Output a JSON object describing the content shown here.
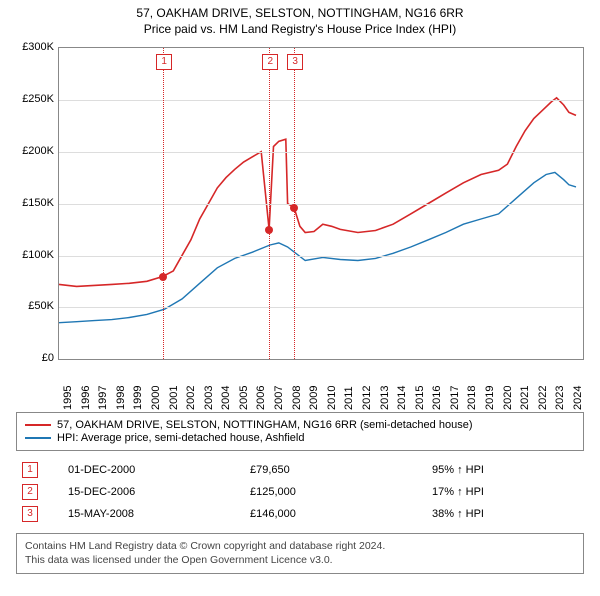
{
  "title_line1": "57, OAKHAM DRIVE, SELSTON, NOTTINGHAM, NG16 6RR",
  "title_line2": "Price paid vs. HM Land Registry's House Price Index (HPI)",
  "chart": {
    "type": "line",
    "x_min": 1995,
    "x_max": 2024.8,
    "x_ticks": [
      1995,
      1996,
      1997,
      1998,
      1999,
      2000,
      2001,
      2002,
      2003,
      2004,
      2005,
      2006,
      2007,
      2008,
      2009,
      2010,
      2011,
      2012,
      2013,
      2014,
      2015,
      2016,
      2017,
      2018,
      2019,
      2020,
      2021,
      2022,
      2023,
      2024
    ],
    "y_min": 0,
    "y_max": 300,
    "y_ticks": [
      0,
      50,
      100,
      150,
      200,
      250,
      300
    ],
    "y_prefix": "£",
    "y_suffix": "K",
    "grid_color": "#dddddd",
    "series1": {
      "label": "57, OAKHAM DRIVE, SELSTON, NOTTINGHAM, NG16 6RR (semi-detached house)",
      "color": "#d62728",
      "width": 1.6,
      "points": [
        [
          1995.0,
          72
        ],
        [
          1996.0,
          70
        ],
        [
          1997.0,
          71
        ],
        [
          1998.0,
          72
        ],
        [
          1999.0,
          73
        ],
        [
          2000.0,
          75
        ],
        [
          2000.9,
          79.6
        ],
        [
          2001.5,
          85
        ],
        [
          2002.0,
          100
        ],
        [
          2002.5,
          115
        ],
        [
          2003.0,
          135
        ],
        [
          2003.5,
          150
        ],
        [
          2004.0,
          165
        ],
        [
          2004.5,
          175
        ],
        [
          2005.0,
          183
        ],
        [
          2005.5,
          190
        ],
        [
          2006.0,
          195
        ],
        [
          2006.5,
          200
        ],
        [
          2006.95,
          125
        ],
        [
          2007.2,
          205
        ],
        [
          2007.5,
          210
        ],
        [
          2007.9,
          212
        ],
        [
          2008.0,
          150
        ],
        [
          2008.37,
          146
        ],
        [
          2008.7,
          128
        ],
        [
          2009.0,
          122
        ],
        [
          2009.5,
          123
        ],
        [
          2010.0,
          130
        ],
        [
          2010.5,
          128
        ],
        [
          2011.0,
          125
        ],
        [
          2012.0,
          122
        ],
        [
          2013.0,
          124
        ],
        [
          2014.0,
          130
        ],
        [
          2015.0,
          140
        ],
        [
          2016.0,
          150
        ],
        [
          2017.0,
          160
        ],
        [
          2018.0,
          170
        ],
        [
          2019.0,
          178
        ],
        [
          2020.0,
          182
        ],
        [
          2020.5,
          188
        ],
        [
          2021.0,
          205
        ],
        [
          2021.5,
          220
        ],
        [
          2022.0,
          232
        ],
        [
          2022.5,
          240
        ],
        [
          2023.0,
          248
        ],
        [
          2023.3,
          252
        ],
        [
          2023.7,
          245
        ],
        [
          2024.0,
          238
        ],
        [
          2024.4,
          235
        ]
      ]
    },
    "series2": {
      "label": "HPI: Average price, semi-detached house, Ashfield",
      "color": "#1f77b4",
      "width": 1.4,
      "points": [
        [
          1995.0,
          35
        ],
        [
          1996.0,
          36
        ],
        [
          1997.0,
          37
        ],
        [
          1998.0,
          38
        ],
        [
          1999.0,
          40
        ],
        [
          2000.0,
          43
        ],
        [
          2001.0,
          48
        ],
        [
          2002.0,
          58
        ],
        [
          2003.0,
          73
        ],
        [
          2004.0,
          88
        ],
        [
          2005.0,
          97
        ],
        [
          2006.0,
          103
        ],
        [
          2007.0,
          110
        ],
        [
          2007.5,
          112
        ],
        [
          2008.0,
          108
        ],
        [
          2009.0,
          95
        ],
        [
          2010.0,
          98
        ],
        [
          2011.0,
          96
        ],
        [
          2012.0,
          95
        ],
        [
          2013.0,
          97
        ],
        [
          2014.0,
          102
        ],
        [
          2015.0,
          108
        ],
        [
          2016.0,
          115
        ],
        [
          2017.0,
          122
        ],
        [
          2018.0,
          130
        ],
        [
          2019.0,
          135
        ],
        [
          2020.0,
          140
        ],
        [
          2021.0,
          155
        ],
        [
          2022.0,
          170
        ],
        [
          2022.7,
          178
        ],
        [
          2023.2,
          180
        ],
        [
          2023.7,
          173
        ],
        [
          2024.0,
          168
        ],
        [
          2024.4,
          166
        ]
      ]
    },
    "events": [
      {
        "n": "1",
        "year": 2000.92,
        "value": 79.65,
        "date": "01-DEC-2000",
        "price": "£79,650",
        "pct": "95% ↑ HPI"
      },
      {
        "n": "2",
        "year": 2006.96,
        "value": 125.0,
        "date": "15-DEC-2006",
        "price": "£125,000",
        "pct": "17% ↑ HPI"
      },
      {
        "n": "3",
        "year": 2008.37,
        "value": 146.0,
        "date": "15-MAY-2008",
        "price": "£146,000",
        "pct": "38% ↑ HPI"
      }
    ]
  },
  "footer_line1": "Contains HM Land Registry data © Crown copyright and database right 2024.",
  "footer_line2": "This data was licensed under the Open Government Licence v3.0."
}
